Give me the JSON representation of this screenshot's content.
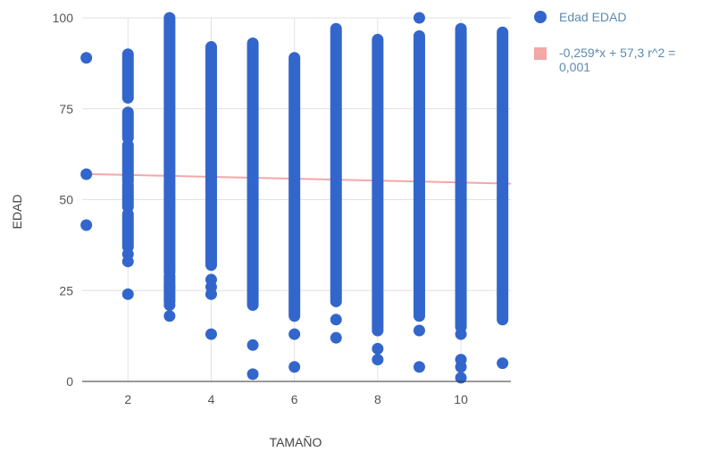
{
  "chart_data": {
    "type": "scatter",
    "xlabel": "TAMAÑO",
    "ylabel": "EDAD",
    "xlim": [
      0.9,
      11.2
    ],
    "ylim": [
      0,
      100
    ],
    "x_ticks": [
      2,
      4,
      6,
      8,
      10
    ],
    "y_ticks": [
      0,
      25,
      50,
      75,
      100
    ],
    "grid": true,
    "legend_position": "right",
    "colors": {
      "points": "#3366cc",
      "trendline": "#f4a7a7",
      "grid": "#e0e0e0",
      "axis": "#333333"
    },
    "series": [
      {
        "name": "Edad EDAD",
        "columns": [
          {
            "x": 1,
            "dense": [],
            "scatter": [
              89,
              57,
              43
            ]
          },
          {
            "x": 2,
            "dense": [
              [
                37,
                46
              ],
              [
                48,
                54
              ],
              [
                55,
                65
              ],
              [
                67,
                74
              ],
              [
                78,
                90
              ]
            ],
            "scatter": [
              24,
              33,
              35
            ]
          },
          {
            "x": 3,
            "dense": [
              [
                22,
                29
              ],
              [
                30,
                100
              ]
            ],
            "scatter": [
              18,
              21,
              26
            ]
          },
          {
            "x": 4,
            "dense": [
              [
                32,
                92
              ]
            ],
            "scatter": [
              13,
              24,
              26,
              28
            ]
          },
          {
            "x": 5,
            "dense": [
              [
                21,
                93
              ]
            ],
            "scatter": [
              2,
              10
            ]
          },
          {
            "x": 6,
            "dense": [
              [
                18,
                89
              ]
            ],
            "scatter": [
              4,
              13
            ]
          },
          {
            "x": 7,
            "dense": [
              [
                22,
                97
              ]
            ],
            "scatter": [
              12,
              17
            ]
          },
          {
            "x": 8,
            "dense": [
              [
                14,
                94
              ]
            ],
            "scatter": [
              6,
              9
            ]
          },
          {
            "x": 9,
            "dense": [
              [
                18,
                95
              ]
            ],
            "scatter": [
              4,
              14,
              100
            ]
          },
          {
            "x": 10,
            "dense": [
              [
                15,
                97
              ]
            ],
            "scatter": [
              1,
              4,
              6,
              13
            ]
          },
          {
            "x": 11,
            "dense": [
              [
                17,
                96
              ]
            ],
            "scatter": [
              5
            ]
          }
        ]
      },
      {
        "name": "-0,259*x + 57,3 r^2 = 0,001",
        "type": "trendline",
        "slope": -0.259,
        "intercept": 57.3
      }
    ]
  },
  "legend": {
    "points_label": "Edad EDAD",
    "trend_label_line1": "-0,259*x + 57,3 r^2 =",
    "trend_label_line2": "0,001"
  }
}
